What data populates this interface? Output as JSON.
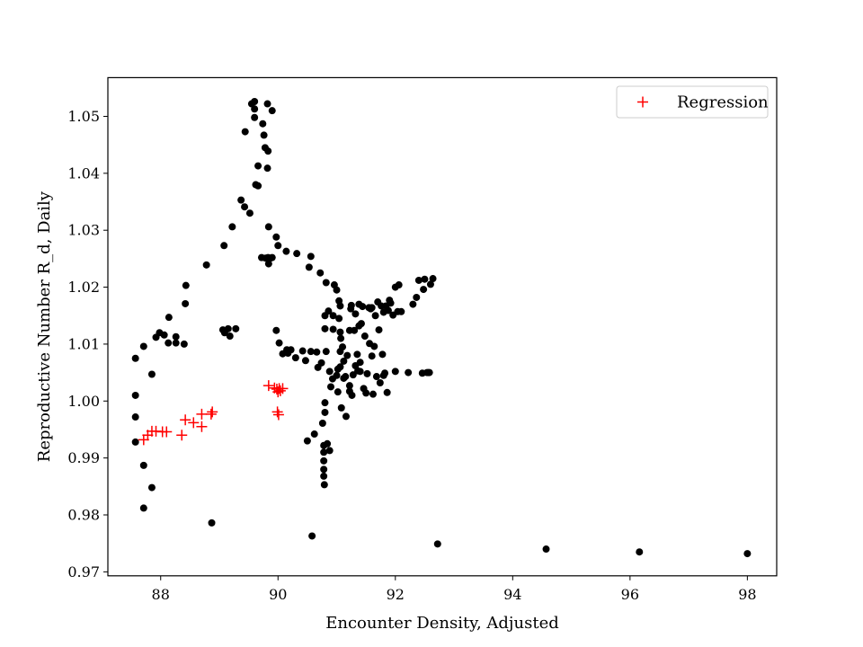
{
  "chart_data": {
    "type": "scatter",
    "xlabel": "Encounter Density, Adjusted",
    "ylabel": "Reproductive Number R_d, Daily",
    "xlim": [
      87.1,
      98.5
    ],
    "ylim": [
      0.9693,
      1.0568
    ],
    "xticks": [
      88,
      90,
      92,
      94,
      96,
      98
    ],
    "yticks": [
      0.97,
      0.98,
      0.99,
      1.0,
      1.01,
      1.02,
      1.03,
      1.04,
      1.05
    ],
    "ytick_labels": [
      "0.97",
      "0.98",
      "0.99",
      "1.00",
      "1.01",
      "1.02",
      "1.03",
      "1.04",
      "1.05"
    ],
    "grid": false,
    "legend": {
      "position": "top-right",
      "entries": [
        "Regression"
      ]
    },
    "series": [
      {
        "marker": "circle",
        "color": "#000000",
        "points": [
          [
            87.57,
            1.0075
          ],
          [
            87.57,
            1.001
          ],
          [
            87.57,
            0.9972
          ],
          [
            87.57,
            0.9928
          ],
          [
            87.71,
            0.9887
          ],
          [
            87.71,
            0.9812
          ],
          [
            87.85,
            0.9848
          ],
          [
            87.71,
            1.0096
          ],
          [
            87.85,
            1.0047
          ],
          [
            87.92,
            1.0112
          ],
          [
            87.98,
            1.012
          ],
          [
            88.06,
            1.0116
          ],
          [
            88.13,
            1.0102
          ],
          [
            88.14,
            1.0147
          ],
          [
            88.26,
            1.0113
          ],
          [
            88.26,
            1.0102
          ],
          [
            88.4,
            1.01
          ],
          [
            88.42,
            1.0171
          ],
          [
            88.43,
            1.0203
          ],
          [
            88.78,
            1.0239
          ],
          [
            88.87,
            0.9786
          ],
          [
            89.08,
            1.0273
          ],
          [
            89.06,
            1.0125
          ],
          [
            89.09,
            1.012
          ],
          [
            89.15,
            1.0127
          ],
          [
            89.18,
            1.0114
          ],
          [
            89.22,
            1.0306
          ],
          [
            89.28,
            1.0127
          ],
          [
            89.37,
            1.0353
          ],
          [
            89.43,
            1.0341
          ],
          [
            89.44,
            1.0473
          ],
          [
            89.52,
            1.033
          ],
          [
            89.55,
            1.0522
          ],
          [
            89.6,
            1.0526
          ],
          [
            89.6,
            1.0513
          ],
          [
            89.6,
            1.0498
          ],
          [
            89.62,
            1.038
          ],
          [
            89.66,
            1.0413
          ],
          [
            89.66,
            1.0378
          ],
          [
            89.72,
            1.0252
          ],
          [
            89.74,
            1.0487
          ],
          [
            89.76,
            1.0467
          ],
          [
            89.78,
            1.0445
          ],
          [
            89.79,
            1.0251
          ],
          [
            89.82,
            1.0409
          ],
          [
            89.82,
            1.0522
          ],
          [
            89.83,
            1.0252
          ],
          [
            89.83,
            1.0439
          ],
          [
            89.84,
            1.0306
          ],
          [
            89.84,
            1.0241
          ],
          [
            89.87,
            1.0251
          ],
          [
            89.9,
            1.051
          ],
          [
            89.9,
            1.0252
          ],
          [
            89.97,
            1.0288
          ],
          [
            89.97,
            1.0124
          ],
          [
            90.0,
            1.0273
          ],
          [
            90.02,
            1.0102
          ],
          [
            90.08,
            1.0083
          ],
          [
            90.14,
            1.0263
          ],
          [
            90.15,
            1.009
          ],
          [
            90.17,
            1.0084
          ],
          [
            90.22,
            1.009
          ],
          [
            90.3,
            1.0076
          ],
          [
            90.32,
            1.0259
          ],
          [
            90.42,
            1.0088
          ],
          [
            90.47,
            1.0071
          ],
          [
            90.5,
            0.993
          ],
          [
            90.53,
            1.0235
          ],
          [
            90.56,
            1.0087
          ],
          [
            90.56,
            1.0254
          ],
          [
            90.58,
            0.9763
          ],
          [
            90.62,
            0.9942
          ],
          [
            90.66,
            1.0086
          ],
          [
            90.68,
            1.0059
          ],
          [
            90.72,
            1.0225
          ],
          [
            90.74,
            1.0067
          ],
          [
            90.76,
            0.9961
          ],
          [
            90.78,
            0.9922
          ],
          [
            90.78,
            0.991
          ],
          [
            90.78,
            0.9895
          ],
          [
            90.78,
            0.988
          ],
          [
            90.78,
            0.9868
          ],
          [
            90.79,
            0.9853
          ],
          [
            90.8,
            0.9997
          ],
          [
            90.8,
            0.998
          ],
          [
            90.8,
            1.015
          ],
          [
            90.8,
            1.0127
          ],
          [
            90.82,
            1.0087
          ],
          [
            90.82,
            1.0208
          ],
          [
            90.84,
            0.9925
          ],
          [
            90.86,
            1.0158
          ],
          [
            90.88,
            0.9913
          ],
          [
            90.88,
            1.0052
          ],
          [
            90.9,
            1.0025
          ],
          [
            90.93,
            1.0039
          ],
          [
            90.94,
            1.0126
          ],
          [
            90.94,
            1.015
          ],
          [
            90.96,
            1.0204
          ],
          [
            91.0,
            1.0045
          ],
          [
            91.0,
            1.0195
          ],
          [
            91.02,
            1.0056
          ],
          [
            91.02,
            1.0016
          ],
          [
            91.04,
            1.0145
          ],
          [
            91.04,
            1.0176
          ],
          [
            91.06,
            1.0167
          ],
          [
            91.06,
            1.0121
          ],
          [
            91.06,
            1.0087
          ],
          [
            91.06,
            1.006
          ],
          [
            91.07,
            1.011
          ],
          [
            91.08,
            0.9988
          ],
          [
            91.1,
            1.0095
          ],
          [
            91.12,
            1.004
          ],
          [
            91.12,
            1.007
          ],
          [
            91.15,
            1.0043
          ],
          [
            91.16,
            0.9973
          ],
          [
            91.18,
            1.008
          ],
          [
            91.22,
            1.0027
          ],
          [
            91.22,
            1.0017
          ],
          [
            91.22,
            1.0124
          ],
          [
            91.24,
            1.0162
          ],
          [
            91.25,
            1.0168
          ],
          [
            91.26,
            1.001
          ],
          [
            91.28,
            1.0046
          ],
          [
            91.3,
            1.0124
          ],
          [
            91.32,
            1.0062
          ],
          [
            91.32,
            1.0153
          ],
          [
            91.35,
            1.0082
          ],
          [
            91.36,
            1.0053
          ],
          [
            91.38,
            1.0132
          ],
          [
            91.38,
            1.017
          ],
          [
            91.4,
            1.0052
          ],
          [
            91.4,
            1.0068
          ],
          [
            91.42,
            1.0136
          ],
          [
            91.44,
            1.0166
          ],
          [
            91.46,
            1.0022
          ],
          [
            91.48,
            1.0114
          ],
          [
            91.5,
            1.0014
          ],
          [
            91.52,
            1.0048
          ],
          [
            91.55,
            1.0164
          ],
          [
            91.56,
            1.0101
          ],
          [
            91.58,
            1.0162
          ],
          [
            91.6,
            1.0079
          ],
          [
            91.6,
            1.0164
          ],
          [
            91.62,
            1.0012
          ],
          [
            91.64,
            1.0096
          ],
          [
            91.66,
            1.015
          ],
          [
            91.68,
            1.0043
          ],
          [
            91.7,
            1.0174
          ],
          [
            91.72,
            1.0125
          ],
          [
            91.74,
            1.0032
          ],
          [
            91.76,
            1.0167
          ],
          [
            91.78,
            1.0082
          ],
          [
            91.8,
            1.0045
          ],
          [
            91.8,
            1.0156
          ],
          [
            91.82,
            1.0049
          ],
          [
            91.84,
            1.0167
          ],
          [
            91.86,
            1.0015
          ],
          [
            91.88,
            1.0159
          ],
          [
            91.9,
            1.0177
          ],
          [
            91.92,
            1.0172
          ],
          [
            91.96,
            1.0151
          ],
          [
            92.0,
            1.0052
          ],
          [
            92.0,
            1.02
          ],
          [
            92.04,
            1.0157
          ],
          [
            92.06,
            1.0204
          ],
          [
            92.1,
            1.0157
          ],
          [
            92.22,
            1.005
          ],
          [
            92.3,
            1.017
          ],
          [
            92.36,
            1.0182
          ],
          [
            92.4,
            1.0212
          ],
          [
            92.46,
            1.0049
          ],
          [
            92.48,
            1.0196
          ],
          [
            92.5,
            1.0214
          ],
          [
            92.54,
            1.005
          ],
          [
            92.56,
            1.005
          ],
          [
            92.58,
            1.005
          ],
          [
            92.6,
            1.0205
          ],
          [
            92.64,
            1.0215
          ],
          [
            92.72,
            0.9749
          ],
          [
            94.57,
            0.974
          ],
          [
            96.16,
            0.9735
          ],
          [
            98.0,
            0.9732
          ]
        ]
      },
      {
        "name": "Regression",
        "marker": "plus",
        "color": "#ff0000",
        "points": [
          [
            87.71,
            0.9932
          ],
          [
            87.78,
            0.994
          ],
          [
            87.85,
            0.9947
          ],
          [
            87.92,
            0.9947
          ],
          [
            88.03,
            0.9946
          ],
          [
            88.1,
            0.9946
          ],
          [
            88.36,
            0.994
          ],
          [
            88.42,
            0.9967
          ],
          [
            88.56,
            0.9962
          ],
          [
            88.7,
            0.9955
          ],
          [
            88.7,
            0.9977
          ],
          [
            88.86,
            0.9977
          ],
          [
            88.88,
            0.9981
          ],
          [
            89.84,
            1.0027
          ],
          [
            89.94,
            1.0023
          ],
          [
            89.98,
            1.0021
          ],
          [
            90.0,
            1.0016
          ],
          [
            90.02,
            1.0022
          ],
          [
            90.04,
            1.0018
          ],
          [
            90.08,
            1.0022
          ],
          [
            89.99,
            0.9981
          ],
          [
            90.01,
            0.9976
          ]
        ]
      }
    ]
  }
}
